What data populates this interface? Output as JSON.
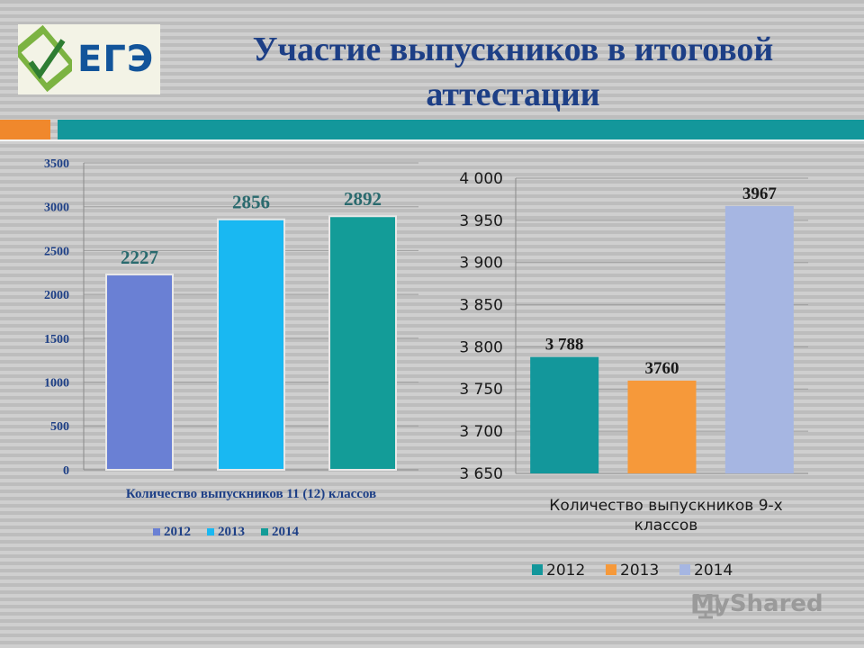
{
  "logo": {
    "text": "ЕГЭ"
  },
  "title": "Участие выпускников  в итоговой аттестации",
  "watermark": "MyShared",
  "chart_data": [
    {
      "type": "bar",
      "xlabel": "Количество выпускников 11 (12) классов",
      "ylim": [
        0,
        3500
      ],
      "yticks": [
        "0",
        "500",
        "1000",
        "1500",
        "2000",
        "2500",
        "3000",
        "3500"
      ],
      "grid": true,
      "legend_position": "bottom",
      "series": [
        {
          "name": "2012",
          "value": 2227,
          "label": "2227",
          "color": "#6a80d4"
        },
        {
          "name": "2013",
          "value": 2856,
          "label": "2856",
          "color": "#19b8f2"
        },
        {
          "name": "2014",
          "value": 2892,
          "label": "2892",
          "color": "#139c98"
        }
      ]
    },
    {
      "type": "bar",
      "xlabel": "Количество выпускников 9-х классов",
      "ylim": [
        3650,
        4000
      ],
      "yticks": [
        "3 650",
        "3 700",
        "3 750",
        "3 800",
        "3 850",
        "3 900",
        "3 950",
        "4 000"
      ],
      "grid": true,
      "legend_position": "bottom",
      "series": [
        {
          "name": "2012",
          "value": 3788,
          "label": "3 788",
          "color": "#13979b"
        },
        {
          "name": "2013",
          "value": 3760,
          "label": "3760",
          "color": "#f6993a"
        },
        {
          "name": "2014",
          "value": 3967,
          "label": "3967",
          "color": "#a6b6e2"
        }
      ]
    }
  ]
}
